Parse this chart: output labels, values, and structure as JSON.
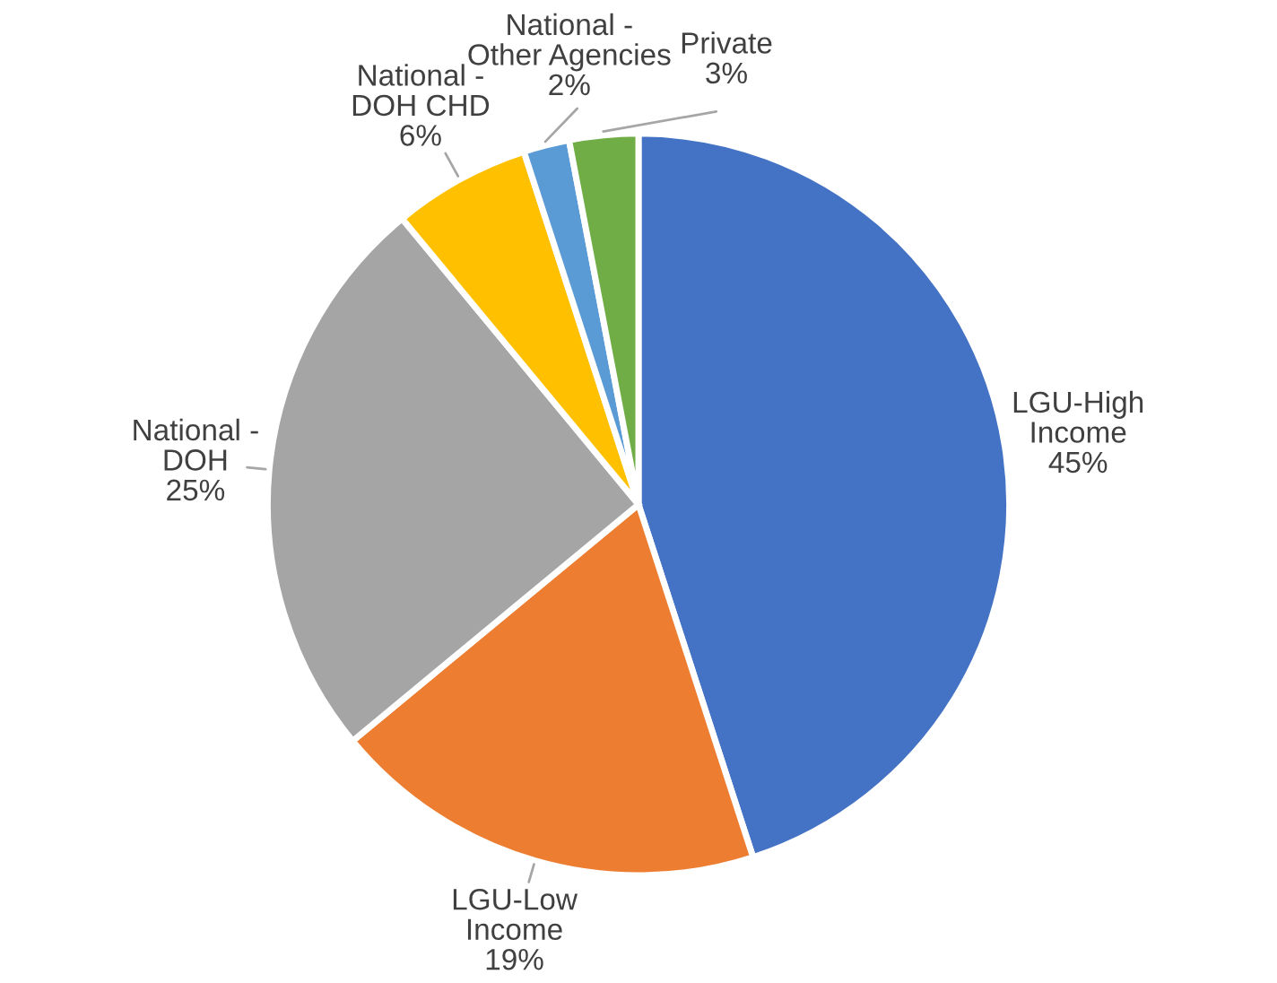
{
  "chart_data": {
    "type": "pie",
    "categories": [
      "LGU-High Income",
      "LGU-Low Income",
      "National - DOH",
      "National - DOH CHD",
      "National - Other Agencies",
      "Private"
    ],
    "values": [
      45,
      19,
      25,
      6,
      2,
      3
    ],
    "colors": [
      "#4472c4",
      "#ed7d31",
      "#a5a5a5",
      "#ffc000",
      "#5b9bd5",
      "#70ad47"
    ],
    "value_labels": [
      "45%",
      "19%",
      "25%",
      "6%",
      "2%",
      "3%"
    ],
    "legend": false
  }
}
